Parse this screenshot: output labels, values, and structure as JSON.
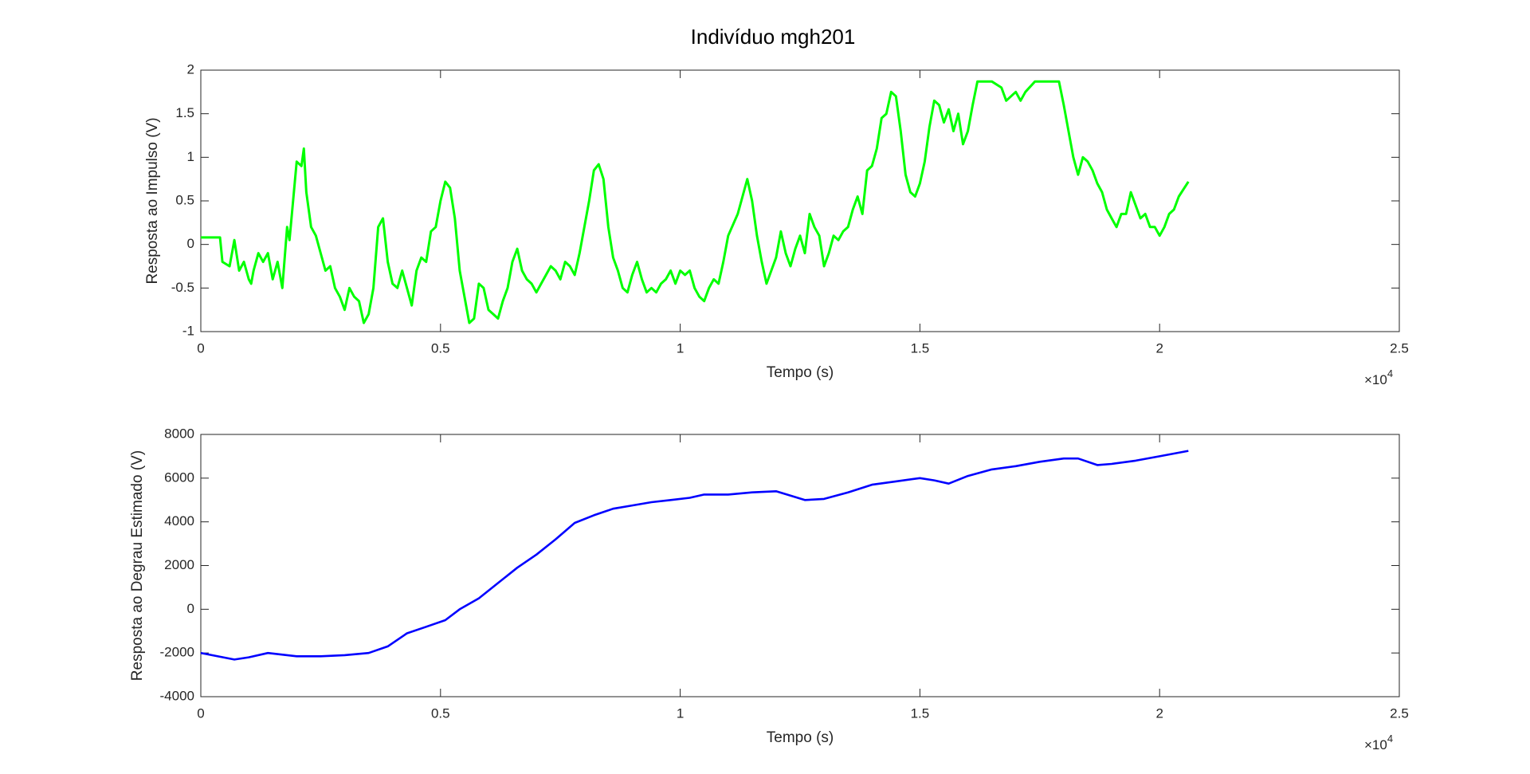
{
  "figure_title": "Indivíduo mgh201",
  "chart_data": [
    {
      "type": "line",
      "xlabel": "Tempo (s)",
      "ylabel": "Resposta ao Impulso (V)",
      "xlim": [
        0,
        25000
      ],
      "ylim": [
        -1,
        2
      ],
      "xticks": [
        0,
        {
          "value": 5000,
          "label": "0.5"
        },
        {
          "value": 10000,
          "label": "1"
        },
        {
          "value": 15000,
          "label": "1.5"
        },
        {
          "value": 20000,
          "label": "2"
        },
        {
          "value": 25000,
          "label": "2.5"
        }
      ],
      "yticks": [
        -1,
        -0.5,
        0,
        0.5,
        1,
        1.5,
        2
      ],
      "x_multiplier": {
        "base": "×10",
        "exponent": "4"
      },
      "x": [
        0,
        400,
        450,
        600,
        700,
        800,
        900,
        1000,
        1050,
        1100,
        1200,
        1300,
        1400,
        1500,
        1600,
        1700,
        1800,
        1850,
        1900,
        2000,
        2100,
        2150,
        2200,
        2300,
        2400,
        2500,
        2600,
        2700,
        2800,
        2900,
        3000,
        3100,
        3200,
        3300,
        3400,
        3500,
        3600,
        3700,
        3800,
        3900,
        4000,
        4100,
        4200,
        4300,
        4400,
        4500,
        4600,
        4700,
        4800,
        4900,
        5000,
        5100,
        5200,
        5300,
        5400,
        5500,
        5600,
        5700,
        5800,
        5900,
        6000,
        6100,
        6200,
        6300,
        6400,
        6500,
        6600,
        6700,
        6800,
        6900,
        7000,
        7100,
        7200,
        7300,
        7400,
        7500,
        7600,
        7700,
        7800,
        7900,
        8000,
        8100,
        8200,
        8300,
        8400,
        8500,
        8600,
        8700,
        8800,
        8900,
        9000,
        9100,
        9200,
        9300,
        9400,
        9500,
        9600,
        9700,
        9800,
        9900,
        10000,
        10100,
        10200,
        10300,
        10400,
        10500,
        10600,
        10700,
        10800,
        10900,
        11000,
        11200,
        11300,
        11400,
        11500,
        11600,
        11700,
        11800,
        11900,
        12000,
        12100,
        12200,
        12300,
        12400,
        12500,
        12600,
        12700,
        12800,
        12900,
        13000,
        13100,
        13200,
        13300,
        13400,
        13500,
        13600,
        13700,
        13800,
        13900,
        14000,
        14100,
        14200,
        14300,
        14400,
        14500,
        14600,
        14700,
        14800,
        14900,
        15000,
        15100,
        15200,
        15300,
        15400,
        15500,
        15600,
        15700,
        15800,
        15900,
        16000,
        16100,
        16200,
        16300,
        16500,
        16700,
        16800,
        16900,
        17000,
        17100,
        17200,
        17400,
        17600,
        17900,
        18000,
        18100,
        18200,
        18300,
        18400,
        18500,
        18600,
        18700,
        18800,
        18900,
        19000,
        19100,
        19200,
        19300,
        19400,
        19500,
        19600,
        19700,
        19800,
        19900,
        20000,
        20100,
        20200,
        20300,
        20400,
        20600
      ],
      "series": [
        {
          "color": "#00ff00",
          "values": [
            0.08,
            0.08,
            -0.2,
            -0.25,
            0.05,
            -0.3,
            -0.2,
            -0.4,
            -0.45,
            -0.3,
            -0.1,
            -0.2,
            -0.1,
            -0.4,
            -0.2,
            -0.5,
            0.2,
            0.05,
            0.35,
            0.95,
            0.9,
            1.1,
            0.6,
            0.2,
            0.1,
            -0.1,
            -0.3,
            -0.25,
            -0.5,
            -0.6,
            -0.75,
            -0.5,
            -0.6,
            -0.65,
            -0.9,
            -0.8,
            -0.5,
            0.2,
            0.3,
            -0.2,
            -0.45,
            -0.5,
            -0.3,
            -0.5,
            -0.7,
            -0.3,
            -0.15,
            -0.2,
            0.15,
            0.2,
            0.5,
            0.72,
            0.65,
            0.3,
            -0.3,
            -0.6,
            -0.9,
            -0.85,
            -0.45,
            -0.5,
            -0.75,
            -0.8,
            -0.85,
            -0.65,
            -0.5,
            -0.2,
            -0.05,
            -0.3,
            -0.4,
            -0.45,
            -0.55,
            -0.45,
            -0.35,
            -0.25,
            -0.3,
            -0.4,
            -0.2,
            -0.25,
            -0.35,
            -0.1,
            0.2,
            0.5,
            0.85,
            0.92,
            0.75,
            0.2,
            -0.15,
            -0.3,
            -0.5,
            -0.55,
            -0.35,
            -0.2,
            -0.4,
            -0.55,
            -0.5,
            -0.55,
            -0.45,
            -0.4,
            -0.3,
            -0.45,
            -0.3,
            -0.35,
            -0.3,
            -0.5,
            -0.6,
            -0.65,
            -0.5,
            -0.4,
            -0.45,
            -0.2,
            0.1,
            0.35,
            0.55,
            0.75,
            0.5,
            0.1,
            -0.2,
            -0.45,
            -0.3,
            -0.15,
            0.15,
            -0.1,
            -0.25,
            -0.05,
            0.1,
            -0.1,
            0.35,
            0.2,
            0.1,
            -0.25,
            -0.1,
            0.1,
            0.05,
            0.15,
            0.2,
            0.4,
            0.55,
            0.35,
            0.85,
            0.9,
            1.1,
            1.45,
            1.5,
            1.75,
            1.7,
            1.3,
            0.8,
            0.6,
            0.55,
            0.7,
            0.95,
            1.35,
            1.65,
            1.6,
            1.4,
            1.55,
            1.3,
            1.5,
            1.15,
            1.3,
            1.6,
            1.87,
            1.87,
            1.87,
            1.8,
            1.65,
            1.7,
            1.75,
            1.65,
            1.75,
            1.87,
            1.87,
            1.87,
            1.6,
            1.3,
            1.0,
            0.8,
            1.0,
            0.95,
            0.85,
            0.7,
            0.6,
            0.4,
            0.3,
            0.2,
            0.35,
            0.35,
            0.6,
            0.45,
            0.3,
            0.35,
            0.2,
            0.2,
            0.1,
            0.2,
            0.35,
            0.4,
            0.55,
            0.72
          ]
        }
      ]
    },
    {
      "type": "line",
      "xlabel": "Tempo (s)",
      "ylabel": "Resposta ao Degrau Estimado (V)",
      "xlim": [
        0,
        25000
      ],
      "ylim": [
        -4000,
        8000
      ],
      "xticks": [
        0,
        {
          "value": 5000,
          "label": "0.5"
        },
        {
          "value": 10000,
          "label": "1"
        },
        {
          "value": 15000,
          "label": "1.5"
        },
        {
          "value": 20000,
          "label": "2"
        },
        {
          "value": 25000,
          "label": "2.5"
        }
      ],
      "yticks": [
        -4000,
        -2000,
        0,
        2000,
        4000,
        6000,
        8000
      ],
      "x_multiplier": {
        "base": "×10",
        "exponent": "4"
      },
      "x": [
        0,
        700,
        1000,
        1400,
        2000,
        2500,
        3000,
        3500,
        3900,
        4300,
        4700,
        5100,
        5400,
        5800,
        6200,
        6600,
        7000,
        7400,
        7800,
        8200,
        8600,
        9000,
        9400,
        9800,
        10200,
        10500,
        11000,
        11500,
        12000,
        12300,
        12600,
        13000,
        13500,
        14000,
        14500,
        15000,
        15300,
        15600,
        16000,
        16500,
        17000,
        17500,
        18000,
        18300,
        18700,
        19000,
        19500,
        20000,
        20600
      ],
      "series": [
        {
          "color": "#0000ff",
          "values": [
            -2000,
            -2300,
            -2200,
            -2000,
            -2150,
            -2150,
            -2100,
            -2000,
            -1700,
            -1100,
            -800,
            -500,
            0,
            500,
            1200,
            1900,
            2500,
            3200,
            3950,
            4300,
            4600,
            4750,
            4900,
            5000,
            5100,
            5250,
            5250,
            5350,
            5400,
            5200,
            5000,
            5050,
            5350,
            5700,
            5850,
            6000,
            5900,
            5750,
            6100,
            6400,
            6550,
            6750,
            6900,
            6900,
            6600,
            6650,
            6800,
            7000,
            7250
          ]
        }
      ]
    }
  ]
}
